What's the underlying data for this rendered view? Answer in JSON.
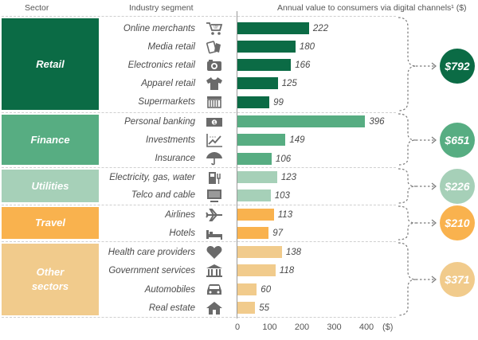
{
  "header": {
    "sector": "Sector",
    "segment": "Industry segment",
    "value": "Annual value to consumers via digital channels¹ ($)"
  },
  "colors": {
    "retail": "#0b6b45",
    "finance": "#57ad82",
    "utilities": "#a6d0b8",
    "travel": "#f9b24e",
    "other": "#f1cb8c"
  },
  "sectors": [
    {
      "name": "Retail",
      "total": "$792"
    },
    {
      "name": "Finance",
      "total": "$651"
    },
    {
      "name": "Utilities",
      "total": "$226"
    },
    {
      "name": "Travel",
      "total": "$210"
    },
    {
      "name": "Other sectors",
      "total": "$371"
    }
  ],
  "chart_data": {
    "type": "bar",
    "orientation": "horizontal",
    "xlabel": "($)",
    "xlim": [
      0,
      400
    ],
    "xticks": [
      "0",
      "100",
      "200",
      "300",
      "400"
    ],
    "unit": "($)",
    "categories": [
      "Online merchants",
      "Media retail",
      "Electronics retail",
      "Apparel retail",
      "Supermarkets",
      "Personal banking",
      "Investments",
      "Insurance",
      "Electricity, gas, water",
      "Telco and cable",
      "Airlines",
      "Hotels",
      "Health care providers",
      "Government services",
      "Automobiles",
      "Real estate"
    ],
    "values": [
      222,
      180,
      166,
      125,
      99,
      396,
      149,
      106,
      123,
      103,
      113,
      97,
      138,
      118,
      60,
      55
    ],
    "labels": [
      "222",
      "180",
      "166",
      "125",
      "99",
      "396",
      "149",
      "106",
      "123",
      "103",
      "113",
      "97",
      "138",
      "118",
      "60",
      "55"
    ],
    "groups": [
      "Retail",
      "Retail",
      "Retail",
      "Retail",
      "Retail",
      "Finance",
      "Finance",
      "Finance",
      "Utilities",
      "Utilities",
      "Travel",
      "Travel",
      "Other sectors",
      "Other sectors",
      "Other sectors",
      "Other sectors"
    ],
    "icons": [
      "shopping-cart-icon",
      "media-icon",
      "camera-icon",
      "shirt-icon",
      "supermarket-icon",
      "banknote-icon",
      "investment-chart-icon",
      "umbrella-icon",
      "utilities-icon",
      "tv-icon",
      "airplane-icon",
      "bed-icon",
      "heart-icon",
      "government-building-icon",
      "car-icon",
      "house-icon"
    ]
  }
}
